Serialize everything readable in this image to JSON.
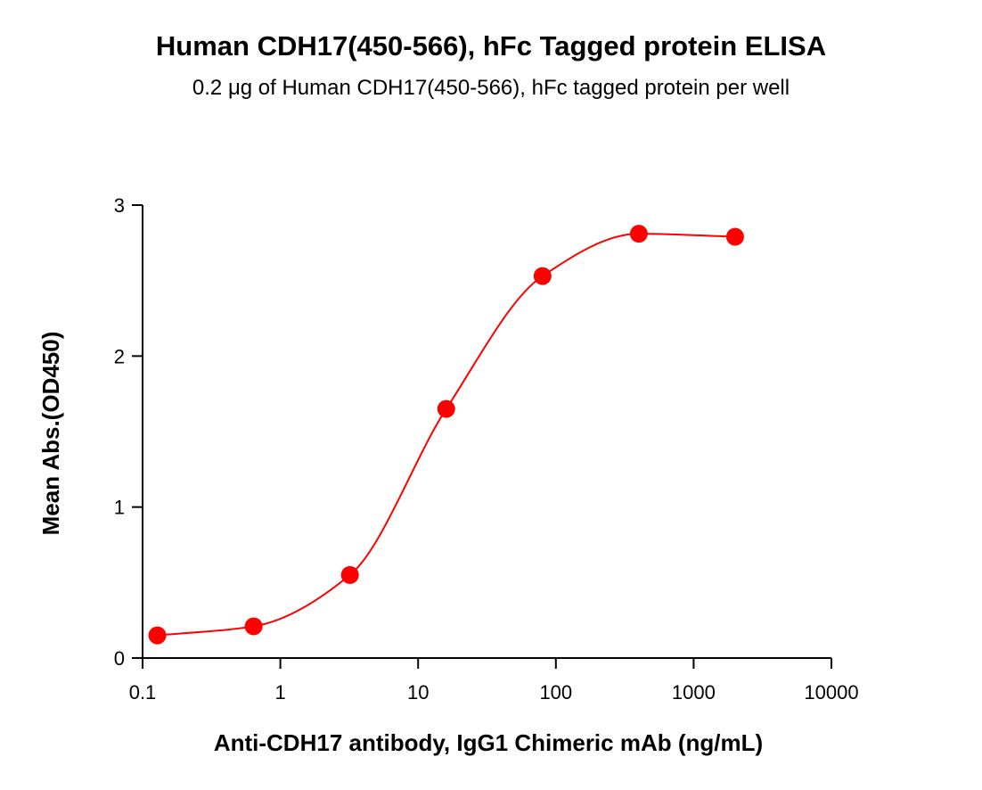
{
  "chart_data": {
    "type": "scatter",
    "title": "Human CDH17(450-566), hFc Tagged protein ELISA",
    "subtitle": "0.2 μg of Human CDH17(450-566), hFc tagged protein per well",
    "x_label": "Anti-CDH17 antibody, IgG1 Chimeric mAb (ng/mL)",
    "y_label": "Mean Abs.(OD450)",
    "x": [
      0.128,
      0.64,
      3.2,
      16,
      80,
      400,
      2000
    ],
    "values": [
      0.15,
      0.21,
      0.55,
      1.65,
      2.53,
      2.81,
      2.79
    ],
    "color": "#ff0000",
    "x_log": true,
    "fit_curve": true,
    "xlim": [
      0.1,
      10000
    ],
    "xticks": [
      0.1,
      1,
      10,
      100,
      1000,
      10000
    ],
    "ylim": [
      0,
      3
    ],
    "yticks": [
      0,
      1,
      2,
      3
    ]
  }
}
